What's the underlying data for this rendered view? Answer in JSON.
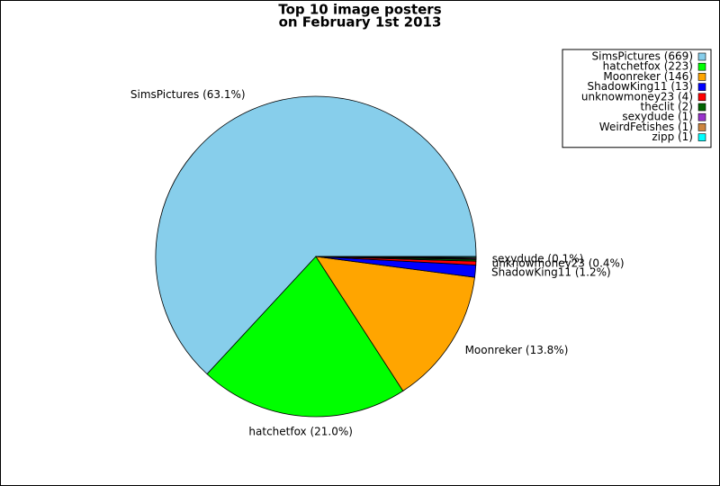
{
  "chart_data": {
    "type": "pie",
    "title": [
      "Top 10 image posters",
      "on February 1st 2013"
    ],
    "categories": [
      "SimsPictures",
      "hatchetfox",
      "Moonreker",
      "ShadowKing11",
      "unknowmoney23",
      "theclit",
      "sexydude",
      "WeirdFetishes",
      "zipp"
    ],
    "values": [
      669,
      223,
      146,
      13,
      4,
      2,
      1,
      1,
      1
    ],
    "value_labels": [
      "SimsPictures (63.1%)",
      "hatchetfox (21.0%)",
      "Moonreker (13.8%)",
      "ShadowKing11 (1.2%)",
      "unknowmoney23 (0.4%)",
      null,
      "sexydude (0.1%)",
      null,
      null
    ],
    "legend_labels": [
      "SimsPictures (669)",
      "hatchetfox (223)",
      "Moonreker (146)",
      "ShadowKing11 (13)",
      "unknowmoney23 (4)",
      "theclit (2)",
      "sexydude (1)",
      "WeirdFetishes (1)",
      "zipp (1)"
    ],
    "colors": [
      "#87ceeb",
      "#00ff00",
      "#ffa500",
      "#0000ff",
      "#ff0000",
      "#006400",
      "#9932cc",
      "#cd853f",
      "#00ffff"
    ],
    "legend": "upper right"
  }
}
